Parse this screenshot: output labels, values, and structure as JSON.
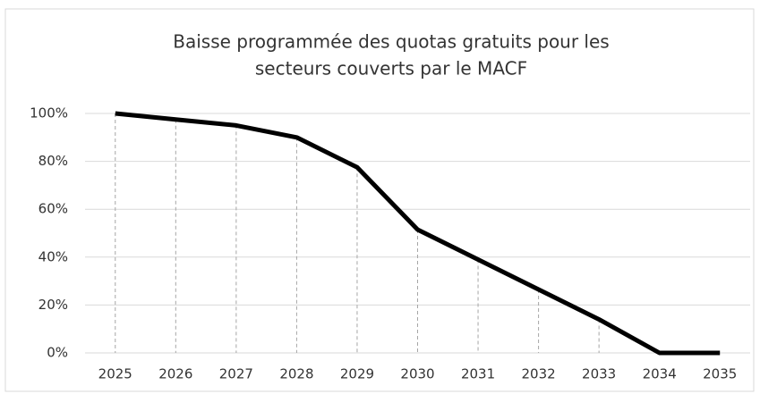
{
  "chart_data": {
    "type": "line",
    "title": [
      "Baisse programmée des quotas gratuits pour les",
      "secteurs couverts par le MACF"
    ],
    "categories": [
      "2025",
      "2026",
      "2027",
      "2028",
      "2029",
      "2030",
      "2031",
      "2032",
      "2033",
      "2034",
      "2035"
    ],
    "values": [
      100,
      97.5,
      95,
      90,
      77.5,
      51.5,
      39,
      26.5,
      14,
      0,
      0
    ],
    "color": "#000000",
    "drop_lines": true,
    "ylim": [
      0,
      100
    ],
    "yticks": [
      {
        "value": 0,
        "label": "0%"
      },
      {
        "value": 20,
        "label": "20%"
      },
      {
        "value": 40,
        "label": "40%"
      },
      {
        "value": 60,
        "label": "60%"
      },
      {
        "value": 80,
        "label": "80%"
      },
      {
        "value": 100,
        "label": "100%"
      }
    ],
    "grid": true
  }
}
